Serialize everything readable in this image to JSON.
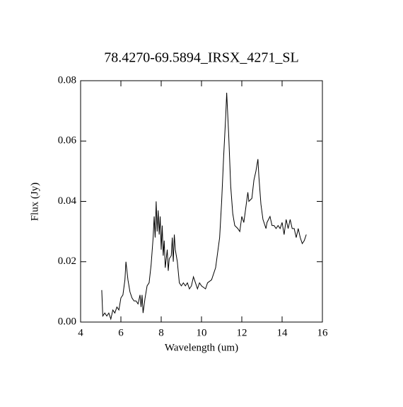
{
  "chart_data": {
    "type": "line",
    "title": "78.4270-69.5894_IRSX_4271_SL",
    "x_label": "Wavelength (um)",
    "y_label": "Flux (Jy)",
    "x": [
      5.05,
      5.1,
      5.2,
      5.3,
      5.4,
      5.5,
      5.6,
      5.7,
      5.8,
      5.9,
      6.0,
      6.1,
      6.2,
      6.25,
      6.35,
      6.45,
      6.55,
      6.65,
      6.75,
      6.85,
      6.95,
      7.0,
      7.05,
      7.1,
      7.2,
      7.3,
      7.4,
      7.5,
      7.6,
      7.65,
      7.7,
      7.75,
      7.8,
      7.85,
      7.9,
      7.95,
      8.0,
      8.05,
      8.1,
      8.15,
      8.2,
      8.3,
      8.35,
      8.4,
      8.5,
      8.55,
      8.6,
      8.65,
      8.7,
      8.8,
      8.9,
      9.0,
      9.1,
      9.2,
      9.3,
      9.4,
      9.5,
      9.6,
      9.7,
      9.8,
      9.9,
      10.0,
      10.2,
      10.3,
      10.5,
      10.7,
      10.9,
      11.0,
      11.1,
      11.2,
      11.25,
      11.35,
      11.45,
      11.55,
      11.65,
      11.8,
      11.9,
      12.0,
      12.1,
      12.2,
      12.3,
      12.35,
      12.5,
      12.6,
      12.7,
      12.8,
      12.85,
      12.95,
      13.05,
      13.2,
      13.25,
      13.4,
      13.5,
      13.6,
      13.7,
      13.8,
      13.9,
      14.0,
      14.1,
      14.2,
      14.3,
      14.4,
      14.5,
      14.6,
      14.7,
      14.8,
      14.9,
      15.0,
      15.1,
      15.2
    ],
    "series": [
      {
        "color": "#000000",
        "values": [
          0.0106,
          0.002,
          0.003,
          0.002,
          0.003,
          0.001,
          0.004,
          0.003,
          0.005,
          0.004,
          0.008,
          0.009,
          0.014,
          0.02,
          0.014,
          0.01,
          0.008,
          0.007,
          0.007,
          0.006,
          0.009,
          0.005,
          0.009,
          0.003,
          0.008,
          0.012,
          0.013,
          0.019,
          0.028,
          0.035,
          0.028,
          0.04,
          0.03,
          0.037,
          0.029,
          0.035,
          0.024,
          0.032,
          0.022,
          0.027,
          0.018,
          0.024,
          0.017,
          0.021,
          0.022,
          0.028,
          0.02,
          0.029,
          0.024,
          0.02,
          0.013,
          0.012,
          0.013,
          0.012,
          0.013,
          0.011,
          0.012,
          0.015,
          0.013,
          0.011,
          0.013,
          0.012,
          0.011,
          0.013,
          0.014,
          0.018,
          0.028,
          0.04,
          0.055,
          0.068,
          0.076,
          0.062,
          0.045,
          0.036,
          0.032,
          0.031,
          0.03,
          0.035,
          0.033,
          0.038,
          0.043,
          0.04,
          0.041,
          0.047,
          0.05,
          0.054,
          0.048,
          0.039,
          0.034,
          0.031,
          0.033,
          0.035,
          0.032,
          0.032,
          0.031,
          0.032,
          0.031,
          0.033,
          0.029,
          0.034,
          0.031,
          0.034,
          0.031,
          0.031,
          0.028,
          0.031,
          0.028,
          0.026,
          0.027,
          0.029
        ]
      }
    ],
    "xlim": [
      4,
      16
    ],
    "xticks": [
      4,
      6,
      8,
      10,
      12,
      14,
      16
    ],
    "ylim": [
      0,
      0.08
    ],
    "yticks": [
      {
        "value": 0,
        "label": "0.00"
      },
      {
        "value": 0.02,
        "label": "0.02"
      },
      {
        "value": 0.04,
        "label": "0.04"
      },
      {
        "value": 0.06,
        "label": "0.06"
      },
      {
        "value": 0.08,
        "label": "0.08"
      }
    ]
  }
}
